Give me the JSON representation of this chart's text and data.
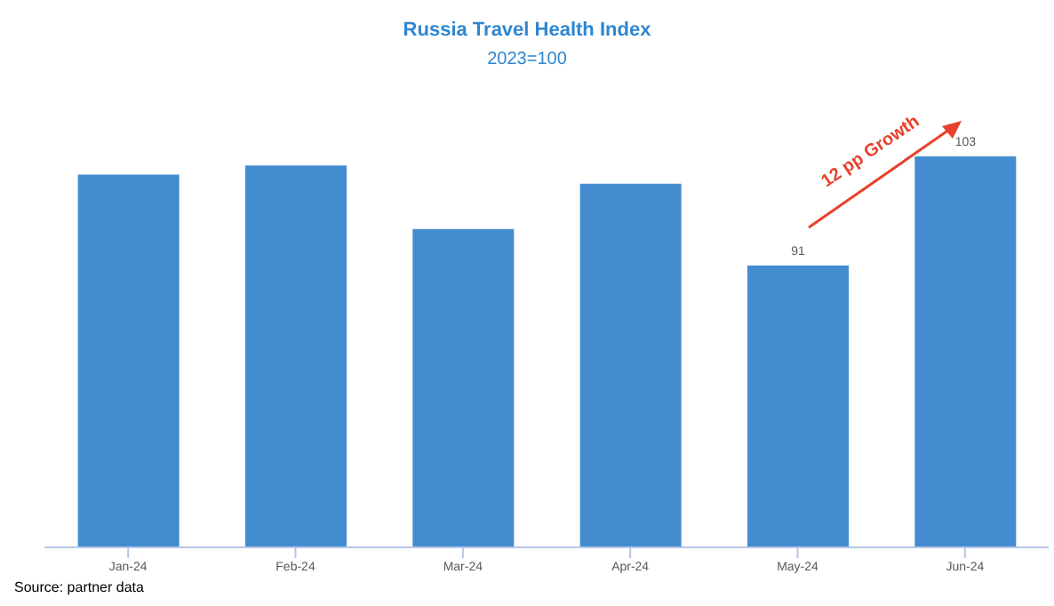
{
  "chart_data": {
    "type": "bar",
    "title": "Russia Travel Health Index",
    "subtitle": "2023=100",
    "categories": [
      "Jan-24",
      "Feb-24",
      "Mar-24",
      "Apr-24",
      "May-24",
      "Jun-24"
    ],
    "values": [
      101,
      102,
      95,
      100,
      91,
      103
    ],
    "value_labels": [
      null,
      null,
      null,
      null,
      "91",
      "103"
    ],
    "color": "#438ccf",
    "ylim": [
      60,
      103
    ],
    "grid": false,
    "legend": false,
    "annotations": [
      "12 pp Growth",
      "Source: partner data"
    ]
  }
}
